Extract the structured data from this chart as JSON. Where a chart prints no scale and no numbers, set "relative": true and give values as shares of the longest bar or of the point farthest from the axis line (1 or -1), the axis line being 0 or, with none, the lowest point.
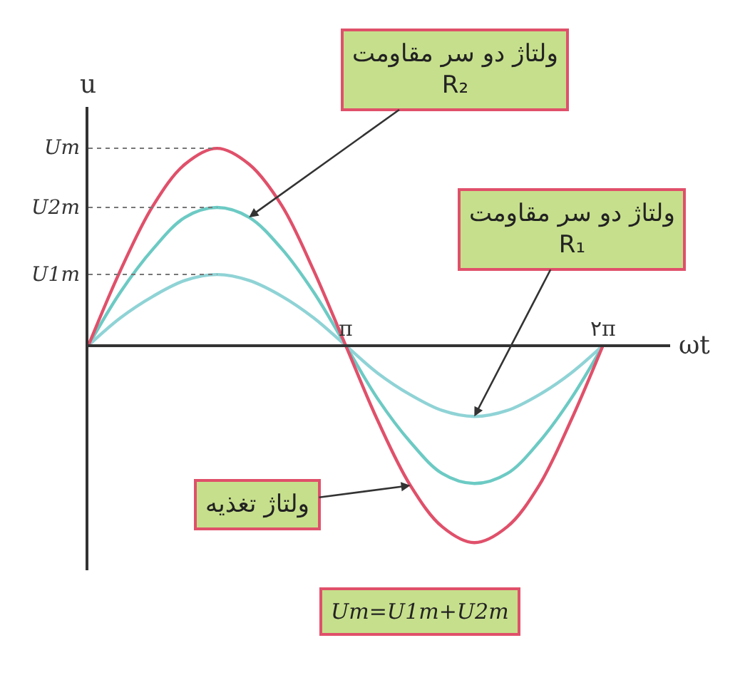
{
  "chart_data": {
    "type": "line",
    "xlabel": "ωt",
    "ylabel": "u",
    "x": [
      0,
      0.39,
      0.79,
      1.18,
      1.57,
      1.96,
      2.36,
      2.75,
      3.14,
      3.53,
      3.93,
      4.32,
      4.71,
      5.11,
      5.5,
      5.89,
      6.28
    ],
    "xlim": [
      0,
      7.1
    ],
    "xticks": [
      {
        "value": 3.14,
        "label": "π"
      },
      {
        "value": 6.28,
        "label": "۲π"
      }
    ],
    "relative": true,
    "series": [
      {
        "name": "ولتاژ دو سر مقاومت R₂",
        "color": "#6ccac4",
        "values": [
          0,
          0.27,
          0.49,
          0.65,
          0.7,
          0.65,
          0.49,
          0.27,
          0,
          -0.27,
          -0.49,
          -0.65,
          -0.7,
          -0.65,
          -0.49,
          -0.27,
          0
        ]
      },
      {
        "name": "ولتاژ دو سر مقاومت R₁",
        "color": "#8fd3d6",
        "values": [
          0,
          0.14,
          0.25,
          0.33,
          0.36,
          0.33,
          0.25,
          0.14,
          0,
          -0.14,
          -0.25,
          -0.33,
          -0.36,
          -0.33,
          -0.25,
          -0.14,
          0
        ]
      },
      {
        "name": "ولتاژ تغذیه",
        "color": "#e0506a",
        "values": [
          0,
          0.38,
          0.71,
          0.92,
          1,
          0.92,
          0.71,
          0.38,
          0,
          -0.38,
          -0.71,
          -0.92,
          -1,
          -0.92,
          -0.71,
          -0.38,
          0
        ]
      }
    ],
    "annotations": [
      "Um",
      "U2m",
      "U1m",
      "Um=U1m+U2m"
    ],
    "grid": false,
    "legend": false,
    "marker": "none",
    "line_style": "solid"
  }
}
